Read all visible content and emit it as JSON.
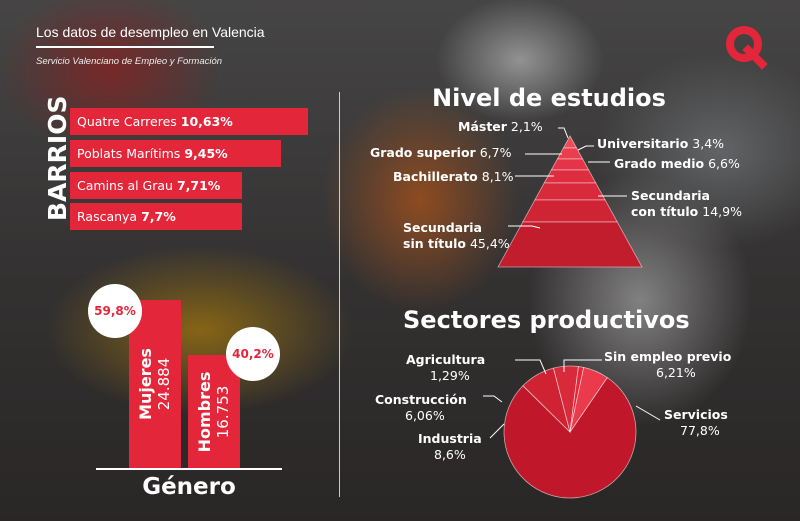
{
  "header": {
    "title": "Los datos de desempleo en Valencia",
    "source": "Servicio Valenciano de Empleo y Formación",
    "brand_color": "#e3263a"
  },
  "barrios": {
    "label": "BARRIOS",
    "items": [
      {
        "name": "Quatre Carreres",
        "value_label": "10,63%",
        "value": 10.63
      },
      {
        "name": "Poblats Marítims",
        "value_label": "9,45%",
        "value": 9.45
      },
      {
        "name": "Camins al Grau",
        "value_label": "7,71%",
        "value": 7.71
      },
      {
        "name": "Rascanya",
        "value_label": "7,7%",
        "value": 7.7
      }
    ]
  },
  "genero": {
    "label": "Género",
    "items": [
      {
        "name": "Mujeres",
        "count": "24.884",
        "pct": "59,8%",
        "value": 59.8
      },
      {
        "name": "Hombres",
        "count": "16.753",
        "pct": "40,2%",
        "value": 40.2
      }
    ]
  },
  "estudios": {
    "title": "Nivel de estudios",
    "levels": [
      {
        "name": "Máster",
        "pct": "2,1%",
        "value": 2.1
      },
      {
        "name": "Universitario",
        "pct": "3,4%",
        "value": 3.4
      },
      {
        "name": "Grado superior",
        "pct": "6,7%",
        "value": 6.7
      },
      {
        "name": "Grado medio",
        "pct": "6,6%",
        "value": 6.6
      },
      {
        "name": "Bachillerato",
        "pct": "8,1%",
        "value": 8.1
      },
      {
        "name": "Secundaria con título",
        "line1": "Secundaria",
        "line2": "con título",
        "pct": "14,9%",
        "value": 14.9
      },
      {
        "name": "Secundaria sin título",
        "line1": "Secundaria",
        "line2": "sin título",
        "pct": "45,4%",
        "value": 45.4
      }
    ]
  },
  "sectores": {
    "title": "Sectores productivos",
    "items": [
      {
        "name": "Servicios",
        "pct": "77,8%",
        "value": 77.8
      },
      {
        "name": "Industria",
        "pct": "8,6%",
        "value": 8.6
      },
      {
        "name": "Construcción",
        "pct": "6,06%",
        "value": 6.06
      },
      {
        "name": "Agricultura",
        "pct": "1,29%",
        "value": 1.29
      },
      {
        "name": "Sin empleo previo",
        "pct": "6,21%",
        "value": 6.21
      }
    ]
  },
  "chart_data": [
    {
      "type": "bar",
      "orientation": "horizontal",
      "categories": [
        "Quatre Carreres",
        "Poblats Marítims",
        "Camins al Grau",
        "Rascanya"
      ],
      "values": [
        10.63,
        9.45,
        7.71,
        7.7
      ],
      "ylabel": "BARRIOS"
    },
    {
      "type": "bar",
      "categories": [
        "Mujeres",
        "Hombres"
      ],
      "values": [
        24884,
        16753
      ],
      "percentages": [
        59.8,
        40.2
      ],
      "xlabel": "Género"
    },
    {
      "type": "pyramid",
      "title": "Nivel de estudios",
      "categories": [
        "Máster",
        "Universitario",
        "Grado superior",
        "Grado medio",
        "Bachillerato",
        "Secundaria con título",
        "Secundaria sin título"
      ],
      "values": [
        2.1,
        3.4,
        6.7,
        6.6,
        8.1,
        14.9,
        45.4
      ]
    },
    {
      "type": "pie",
      "title": "Sectores productivos",
      "categories": [
        "Servicios",
        "Industria",
        "Construcción",
        "Agricultura",
        "Sin empleo previo"
      ],
      "values": [
        77.8,
        8.6,
        6.06,
        1.29,
        6.21
      ]
    }
  ]
}
